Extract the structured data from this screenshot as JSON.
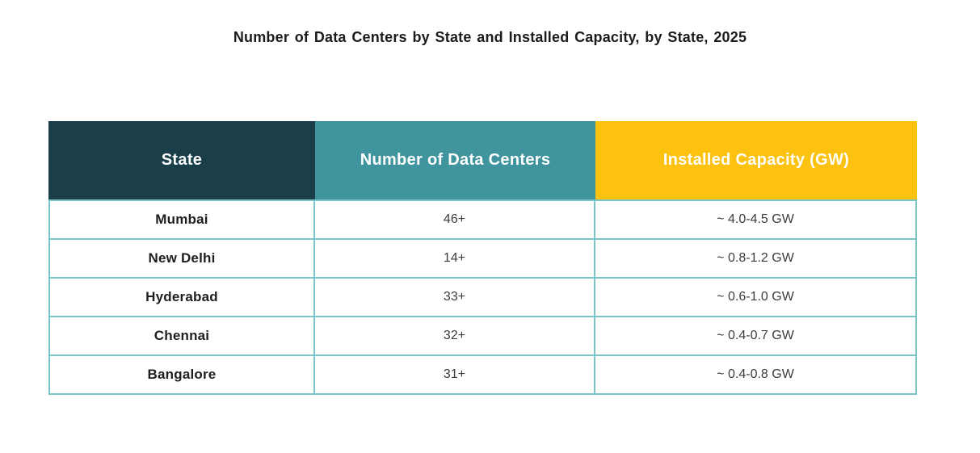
{
  "title": "Number of Data Centers by State and Installed Capacity, by State, 2025",
  "chart_data": {
    "type": "table",
    "title": "Number of Data Centers by State and Installed Capacity, by State, 2025",
    "columns": [
      "State",
      "Number of Data Centers",
      "Installed Capacity (GW)"
    ],
    "rows": [
      {
        "state": "Mumbai",
        "data_centers": "46+",
        "installed_capacity": "~ 4.0-4.5 GW"
      },
      {
        "state": "New Delhi",
        "data_centers": "14+",
        "installed_capacity": "~ 0.8-1.2 GW"
      },
      {
        "state": "Hyderabad",
        "data_centers": "33+",
        "installed_capacity": "~ 0.6-1.0 GW"
      },
      {
        "state": "Chennai",
        "data_centers": "32+",
        "installed_capacity": "~ 0.4-0.7 GW"
      },
      {
        "state": "Bangalore",
        "data_centers": "31+",
        "installed_capacity": "~ 0.4-0.8 GW"
      }
    ],
    "layout": {
      "legend": "none",
      "grid": "table-borders",
      "header_colors": {
        "state": "#1A3F4B",
        "number_of_data_centers": "#40949D",
        "installed_capacity": "#FDC110"
      },
      "header_text_color": "#FFFFFF",
      "border_color": "#7CC3C6",
      "body_text_color": "#1E1E1E"
    }
  }
}
